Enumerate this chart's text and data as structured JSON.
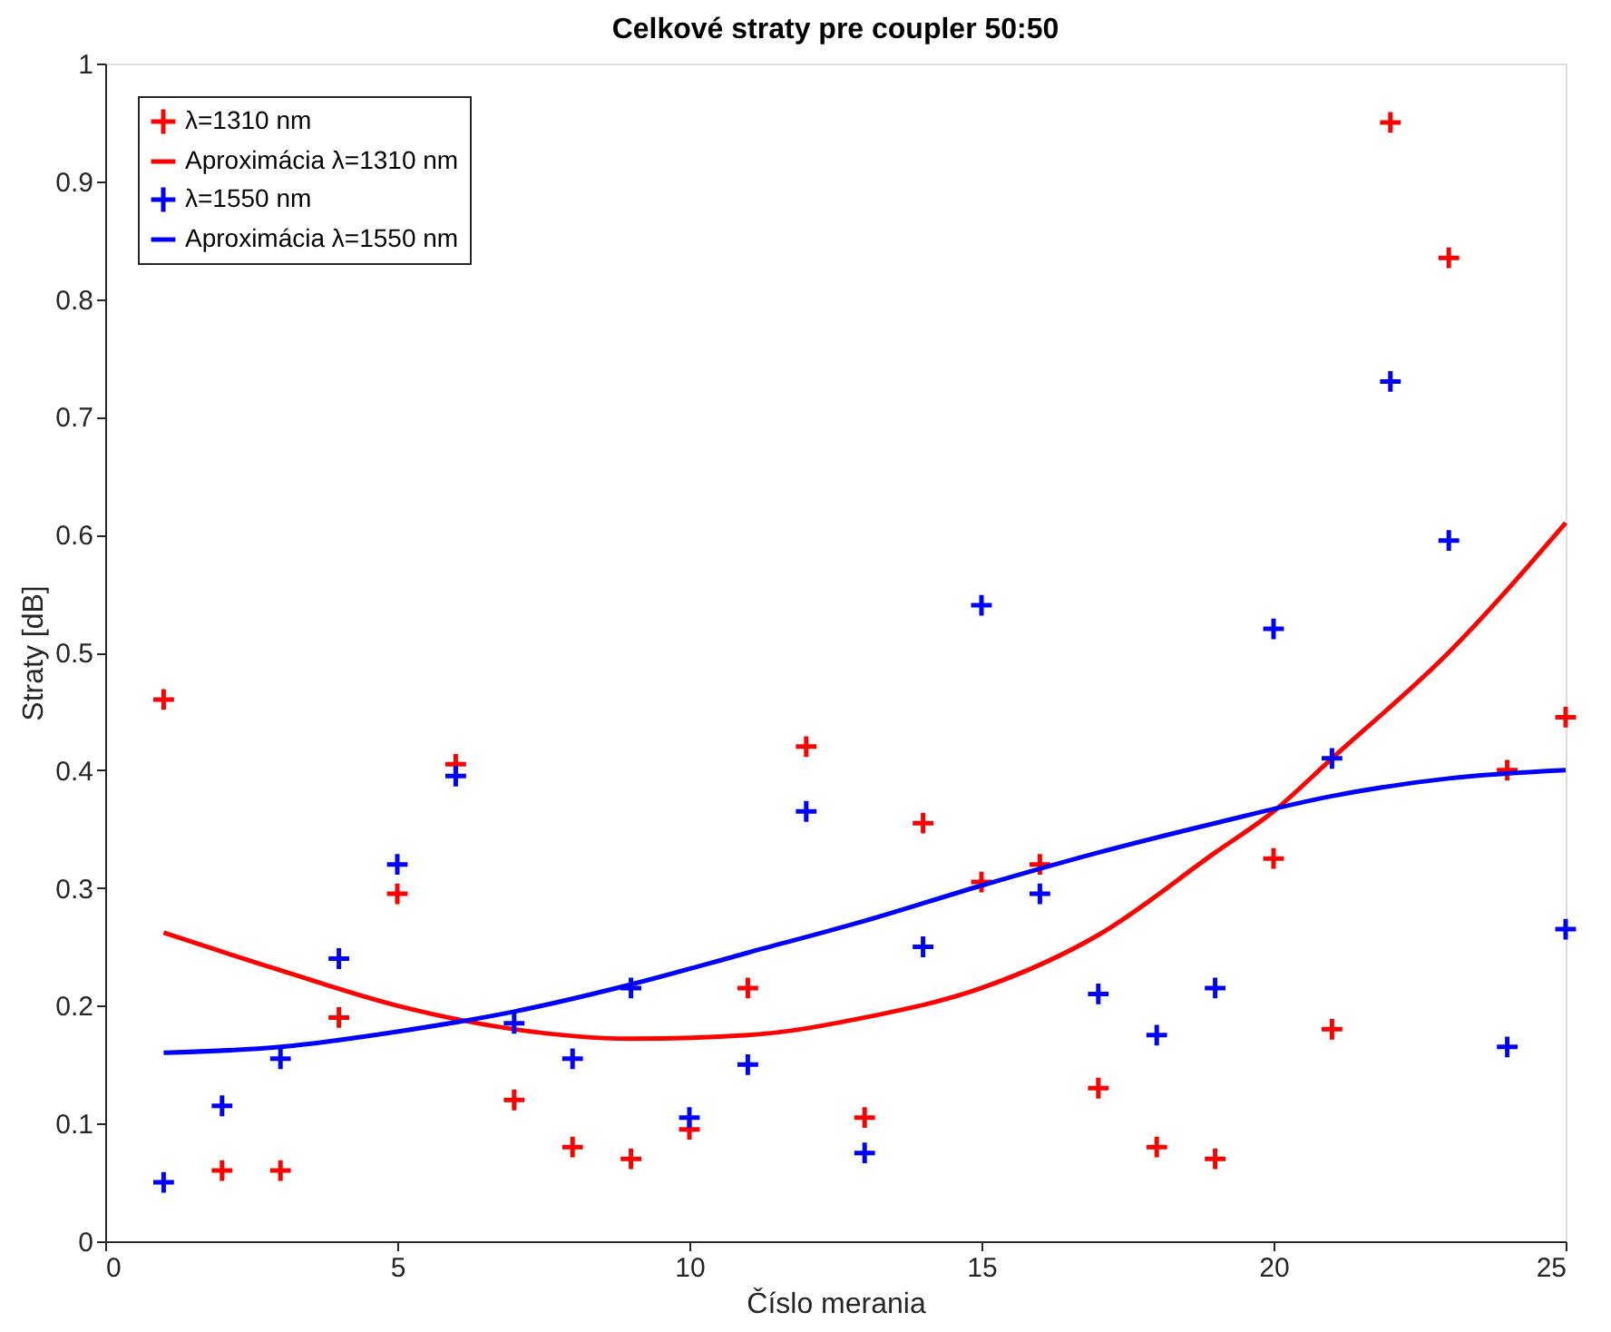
{
  "chart_data": {
    "type": "scatter",
    "title": "Celkové straty pre coupler 50:50",
    "xlabel": "Číslo merania",
    "ylabel": "Straty [dB]",
    "xlim": [
      0,
      25
    ],
    "xticks": [
      0,
      5,
      10,
      15,
      20,
      25
    ],
    "ylim": [
      0,
      1
    ],
    "yticks": [
      0,
      0.1,
      0.2,
      0.3,
      0.4,
      0.5,
      0.6,
      0.7,
      0.8,
      0.9,
      1
    ],
    "grid": false,
    "legend": "top left",
    "x": [
      1,
      2,
      3,
      4,
      5,
      6,
      7,
      8,
      9,
      10,
      11,
      12,
      13,
      14,
      15,
      16,
      17,
      18,
      19,
      20,
      21,
      22,
      23,
      24,
      25
    ],
    "series": [
      {
        "name": "λ=1310 nm",
        "marker": "cross",
        "color": "#ff0000",
        "values": [
          0.46,
          0.06,
          0.06,
          0.19,
          0.295,
          0.405,
          0.12,
          0.08,
          0.07,
          0.095,
          0.215,
          0.42,
          0.105,
          0.355,
          0.305,
          0.32,
          0.13,
          0.08,
          0.07,
          0.325,
          0.18,
          0.95,
          0.835,
          0.4,
          0.445
        ]
      },
      {
        "name": "Aproximácia λ=1310 nm",
        "type": "line",
        "marker": "none",
        "color": "#ff0000",
        "x": [
          1,
          3,
          5,
          7,
          9,
          11,
          13,
          15,
          17,
          19,
          20,
          21,
          23,
          25
        ],
        "values": [
          0.262,
          0.23,
          0.2,
          0.18,
          0.172,
          0.175,
          0.19,
          0.215,
          0.26,
          0.33,
          0.365,
          0.41,
          0.5,
          0.61
        ]
      },
      {
        "name": "λ=1550 nm",
        "marker": "cross",
        "color": "#0000ff",
        "values": [
          0.05,
          0.115,
          0.155,
          0.24,
          0.32,
          0.395,
          0.185,
          0.155,
          0.215,
          0.105,
          0.15,
          0.365,
          0.075,
          0.25,
          0.54,
          0.295,
          0.21,
          0.175,
          0.215,
          0.52,
          0.41,
          0.73,
          0.595,
          0.165,
          0.265
        ]
      },
      {
        "name": "Aproximácia λ=1550 nm",
        "type": "line",
        "marker": "none",
        "color": "#0000ff",
        "x": [
          1,
          3,
          5,
          7,
          9,
          11,
          13,
          15,
          17,
          19,
          21,
          23,
          25
        ],
        "values": [
          0.16,
          0.165,
          0.178,
          0.195,
          0.218,
          0.245,
          0.272,
          0.302,
          0.33,
          0.355,
          0.378,
          0.393,
          0.4
        ]
      }
    ]
  }
}
